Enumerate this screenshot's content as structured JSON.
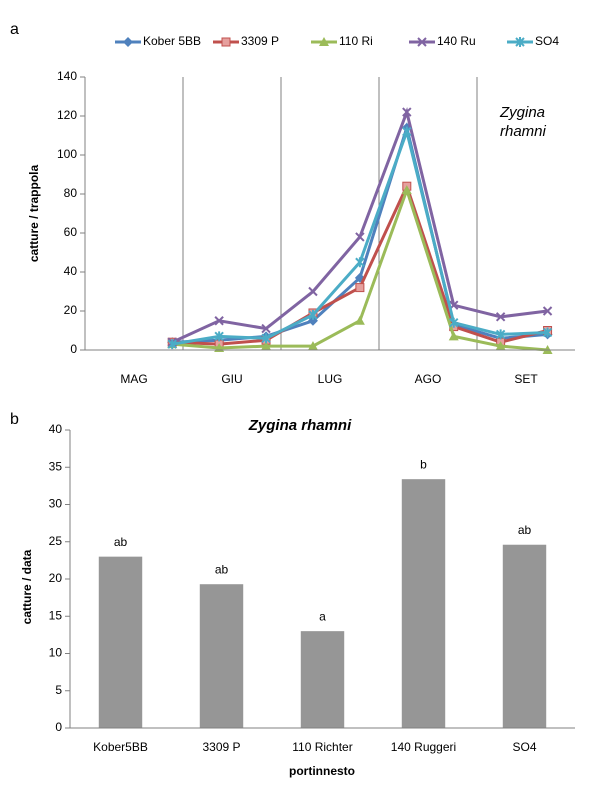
{
  "chart_data": [
    {
      "type": "line",
      "panel": "a",
      "ylabel": "catture / trappola",
      "annotation": [
        "Zygina",
        "rhamni"
      ],
      "categories": [
        null,
        null,
        null,
        null,
        null,
        null,
        null,
        null,
        null
      ],
      "x_groups": [
        "MAG",
        "GIU",
        "LUG",
        "AGO",
        "SET"
      ],
      "series": [
        {
          "name": "Kober 5BB",
          "color": "#4f81bd",
          "marker": "diamond",
          "values": [
            4,
            5,
            7,
            15,
            37,
            114,
            13,
            6,
            8
          ]
        },
        {
          "name": "3309 P",
          "color": "#c0504d",
          "marker": "square",
          "values": [
            4,
            3,
            5,
            19,
            32,
            84,
            12,
            4,
            10
          ]
        },
        {
          "name": "110 Ri",
          "color": "#9bbb59",
          "marker": "triangle",
          "values": [
            3,
            1,
            2,
            2,
            15,
            82,
            7,
            2,
            0
          ]
        },
        {
          "name": "140 Ru",
          "color": "#8064a2",
          "marker": "x",
          "values": [
            4,
            15,
            11,
            30,
            58,
            122,
            23,
            17,
            20
          ]
        },
        {
          "name": "SO4",
          "color": "#4bacc6",
          "marker": "star",
          "values": [
            3,
            7,
            6,
            18,
            45,
            112,
            14,
            8,
            9
          ]
        }
      ],
      "ylim": [
        0,
        140
      ],
      "yticks": [
        0,
        20,
        40,
        60,
        80,
        100,
        120,
        140
      ]
    },
    {
      "type": "bar",
      "panel": "b",
      "title": "Zygina rhamni",
      "xlabel": "portinnesto",
      "ylabel": "catture / data",
      "categories": [
        "Kober5BB",
        "3309 P",
        "110 Richter",
        "140 Ruggeri",
        "SO4"
      ],
      "values": [
        23,
        19.3,
        13,
        33.4,
        24.6
      ],
      "annotations": [
        "ab",
        "ab",
        "a",
        "b",
        "ab"
      ],
      "color": "#969696",
      "ylim": [
        0,
        40
      ],
      "yticks": [
        0,
        5,
        10,
        15,
        20,
        25,
        30,
        35,
        40
      ]
    }
  ]
}
